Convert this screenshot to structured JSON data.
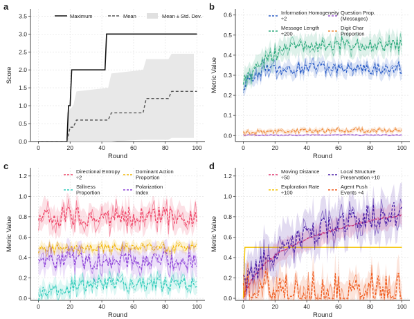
{
  "chart_data": [
    {
      "panel": "a",
      "type": "line",
      "xlabel": "Round",
      "ylabel": "Score",
      "xlim": [
        -5,
        105
      ],
      "ylim": [
        0,
        3.7
      ],
      "xticks": [
        0,
        20,
        40,
        60,
        80,
        100
      ],
      "yticks": [
        0.0,
        0.5,
        1.0,
        1.5,
        2.0,
        2.5,
        3.0,
        3.5
      ],
      "grid": true,
      "legend_position": "top",
      "series": [
        {
          "name": "Maximum",
          "style": "solid",
          "color": "#111111",
          "x": [
            0,
            18,
            19,
            20,
            21,
            42,
            43,
            44,
            100
          ],
          "y": [
            0,
            0,
            1,
            1,
            2,
            2,
            3,
            3,
            3
          ]
        },
        {
          "name": "Mean",
          "style": "dashed",
          "color": "#555555",
          "x": [
            0,
            18,
            20,
            22,
            24,
            44,
            46,
            66,
            68,
            82,
            84,
            100
          ],
          "y": [
            0,
            0,
            0.4,
            0.4,
            0.6,
            0.6,
            0.8,
            0.8,
            1.2,
            1.2,
            1.4,
            1.4
          ]
        },
        {
          "name": "Mean ± Std. Dev.",
          "style": "band",
          "color": "#dddddd",
          "x": [
            18,
            20,
            22,
            24,
            44,
            46,
            66,
            68,
            82,
            84,
            98
          ],
          "low": [
            0,
            0,
            0,
            0,
            0,
            0,
            0.05,
            0.05,
            0.05,
            0.1,
            0.1
          ],
          "high": [
            0.8,
            0.9,
            1.0,
            1.4,
            1.5,
            1.9,
            2.0,
            2.3,
            2.3,
            2.45,
            2.45
          ]
        }
      ]
    },
    {
      "panel": "b",
      "type": "line",
      "xlabel": "Round",
      "ylabel": "Metric Value",
      "xlim": [
        -5,
        105
      ],
      "ylim": [
        -0.03,
        0.63
      ],
      "xticks": [
        0,
        20,
        40,
        60,
        80,
        100
      ],
      "yticks": [
        0.0,
        0.1,
        0.2,
        0.3,
        0.4,
        0.5,
        0.6
      ],
      "grid": true,
      "legend_position": "top",
      "series": [
        {
          "name": "Information Homogeneity ÷2",
          "color": "#2a5cc6",
          "base": 0.335,
          "start": 0.24,
          "rate": 0.15,
          "amp": 0.03,
          "band": 0.035
        },
        {
          "name": "Message Length ÷200",
          "color": "#2faa7d",
          "base": 0.455,
          "start": 0.26,
          "rate": 0.07,
          "amp": 0.035,
          "band": 0.05
        },
        {
          "name": "Question Prop. (Messages)",
          "color": "#9b59d0",
          "base": 0.002,
          "start": 0.002,
          "rate": 1,
          "amp": 0.002,
          "band": 0.004
        },
        {
          "name": "Digit Char Proportion",
          "color": "#ee8a3a",
          "base": 0.025,
          "start": 0.01,
          "rate": 0.05,
          "amp": 0.01,
          "band": 0.012
        }
      ]
    },
    {
      "panel": "c",
      "type": "line",
      "xlabel": "Round",
      "ylabel": "Metric Value",
      "xlim": [
        -5,
        105
      ],
      "ylim": [
        -0.02,
        1.28
      ],
      "xticks": [
        0,
        20,
        40,
        60,
        80,
        100
      ],
      "yticks": [
        0.0,
        0.2,
        0.4,
        0.6,
        0.8,
        1.0,
        1.2
      ],
      "grid": true,
      "legend_position": "top",
      "series": [
        {
          "name": "Directional Entropy ÷2",
          "color": "#ee4466",
          "base": 0.8,
          "start": 0.8,
          "rate": 1,
          "amp": 0.1,
          "band": 0.12
        },
        {
          "name": "Stillness Proportion",
          "color": "#33ccbb",
          "base": 0.14,
          "start": 0.02,
          "rate": 0.08,
          "amp": 0.07,
          "band": 0.08
        },
        {
          "name": "Dominant Action Proportion",
          "color": "#f2b705",
          "base": 0.49,
          "start": 0.47,
          "rate": 1,
          "amp": 0.04,
          "band": 0.05
        },
        {
          "name": "Polarization Index",
          "color": "#8e44d8",
          "base": 0.37,
          "start": 0.37,
          "rate": 1,
          "amp": 0.09,
          "band": 0.12
        }
      ]
    },
    {
      "panel": "d",
      "type": "line",
      "xlabel": "Round",
      "ylabel": "Metric Value",
      "xlim": [
        -5,
        105
      ],
      "ylim": [
        -0.02,
        1.28
      ],
      "xticks": [
        0,
        20,
        40,
        60,
        80,
        100
      ],
      "yticks": [
        0.0,
        0.2,
        0.4,
        0.6,
        0.8,
        1.0,
        1.2
      ],
      "grid": true,
      "legend_position": "top",
      "series": [
        {
          "name": "Moving Distance ÷50",
          "color": "#e0336e",
          "curve": "log",
          "start": 0.0,
          "end": 0.82,
          "amp": 0.01,
          "band": 0.1
        },
        {
          "name": "Exploration Rate ÷100",
          "color": "#f5c400",
          "curve": "plateau",
          "start": 0.0,
          "end": 0.5,
          "amp": 0.0,
          "band": 0.0
        },
        {
          "name": "Local Structure Preservation ÷10",
          "color": "#4a1fa8",
          "curve": "rise",
          "start": 0.15,
          "end": 0.9,
          "amp": 0.12,
          "band": 0.2
        },
        {
          "name": "Agent Push Events ÷4",
          "color": "#ef5a1c",
          "curve": "spiky",
          "start": 0.12,
          "end": 0.08,
          "amp": 0.13,
          "band": 0.15
        }
      ]
    }
  ]
}
